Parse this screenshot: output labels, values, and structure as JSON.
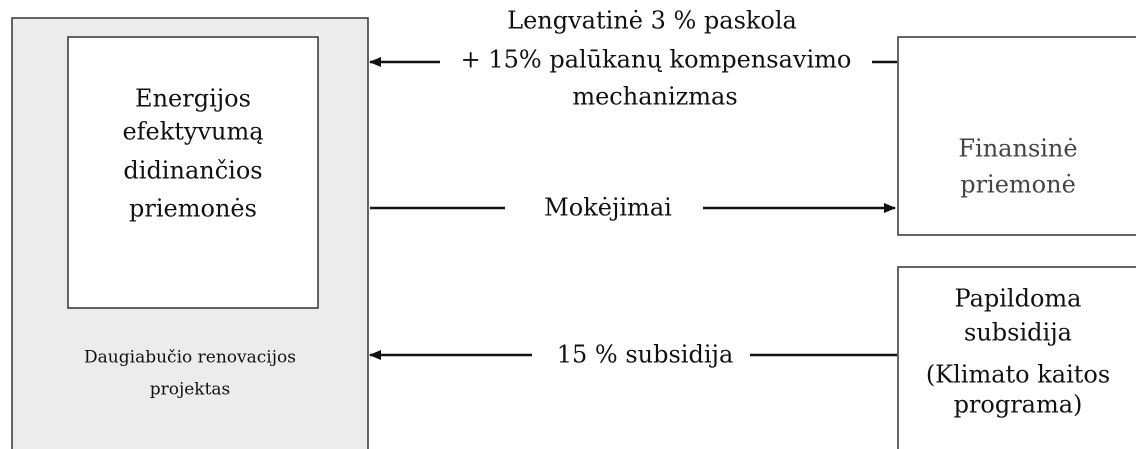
{
  "nodes": [
    {
      "label": [
        "Energijos",
        "efektyvumą",
        "didinančios",
        "priemonės"
      ]
    },
    {
      "label": [
        "Daugiabučio renovacijos",
        "projektas"
      ]
    },
    {
      "label": [
        "Finansinė",
        "priemonė"
      ]
    },
    {
      "label": [
        "Papildoma",
        "subsidija",
        "(Klimato kaitos",
        "programa)"
      ]
    }
  ],
  "edges": [
    {
      "label": [
        "Lengvatinė 3 % paskola",
        "+ 15% palūkanų kompensavimo",
        "mechanizmas"
      ]
    },
    {
      "label": [
        "Mokėjimai"
      ]
    },
    {
      "label": [
        "15 % subsidija"
      ]
    }
  ]
}
